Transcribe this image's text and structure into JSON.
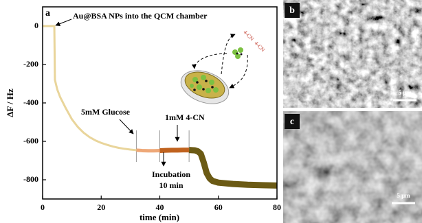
{
  "chart_data": {
    "type": "line",
    "panel_label": "a",
    "x_label": "time (min)",
    "y_label": "ΔF / Hz",
    "xlim": [
      0,
      80
    ],
    "xticks": [
      0,
      20,
      40,
      60,
      80
    ],
    "ylim": [
      -900,
      100
    ],
    "yticks": [
      0,
      -200,
      -400,
      -600,
      -800
    ],
    "series": [
      {
        "color": "#e9d59b",
        "x": [
          0,
          1,
          2,
          3,
          4,
          4.2,
          5,
          6,
          8,
          10,
          12,
          14,
          16,
          18,
          20,
          22,
          24,
          26,
          28,
          30,
          32
        ],
        "values": [
          0,
          0,
          0,
          0,
          0,
          -280,
          -330,
          -370,
          -430,
          -485,
          -525,
          -555,
          -578,
          -595,
          -608,
          -618,
          -627,
          -634,
          -639,
          -643,
          -646
        ]
      },
      {
        "color": "#eea878",
        "x": [
          32,
          34,
          36,
          38,
          40
        ],
        "values": [
          -646,
          -648,
          -649,
          -649,
          -648
        ]
      },
      {
        "color": "#c0621e",
        "x": [
          40,
          42,
          44,
          46,
          48,
          50
        ],
        "values": [
          -648,
          -647,
          -646,
          -646,
          -645,
          -645
        ]
      },
      {
        "color": "#6b5a14",
        "x": [
          50,
          52,
          53,
          54,
          55,
          56,
          57,
          58,
          60,
          65,
          70,
          75,
          80
        ],
        "values": [
          -645,
          -647,
          -652,
          -665,
          -710,
          -765,
          -792,
          -806,
          -815,
          -822,
          -826,
          -828,
          -830
        ]
      }
    ],
    "event_lines": [
      32,
      40,
      50
    ],
    "annotations": [
      "Au@BSA NPs into the QCM chamber",
      "5mM Glucose",
      "1mM 4-CN",
      "Incubation",
      "10 min"
    ],
    "inset_labels": [
      "4-CN",
      "4-CN"
    ]
  },
  "images": [
    {
      "panel_label": "b",
      "scale_bar": "5 μm"
    },
    {
      "panel_label": "c",
      "scale_bar": "5 μm"
    }
  ]
}
